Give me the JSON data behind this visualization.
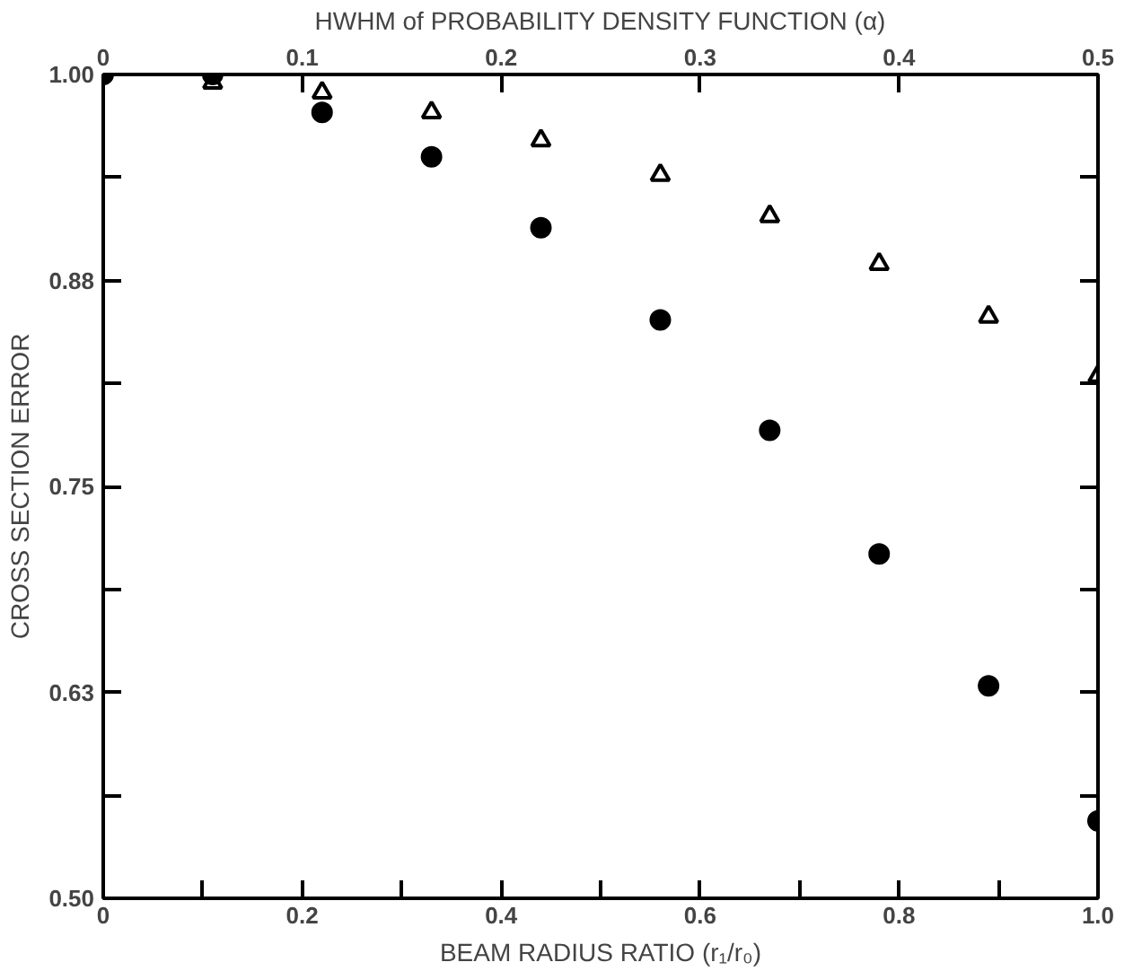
{
  "chart_data": {
    "type": "scatter",
    "xlabel": "BEAM RADIUS RATIO (r₁/r₀)",
    "ylabel": "CROSS SECTION ERROR",
    "x2label": "HWHM of PROBABILITY DENSITY FUNCTION (α)",
    "x": [
      0,
      0.11,
      0.22,
      0.33,
      0.44,
      0.56,
      0.67,
      0.78,
      0.89,
      1.0
    ],
    "series": [
      {
        "color": "#000000",
        "marker": "circle",
        "values": [
          1.0,
          1.0,
          0.977,
          0.95,
          0.907,
          0.851,
          0.784,
          0.709,
          0.629,
          0.547
        ]
      },
      {
        "color": "#000000",
        "marker": "triangle",
        "values": [
          null,
          0.995,
          0.989,
          0.977,
          0.96,
          0.939,
          0.914,
          0.885,
          0.853,
          0.817
        ]
      }
    ],
    "xlim": [
      0,
      1.0
    ],
    "xticks": [
      0,
      {
        "value": 0.1,
        "label": null
      },
      0.2,
      {
        "value": 0.3,
        "label": null
      },
      0.4,
      {
        "value": 0.5,
        "label": null
      },
      0.6,
      {
        "value": 0.7,
        "label": null
      },
      0.8,
      {
        "value": 0.9,
        "label": null
      },
      {
        "value": 1.0,
        "label": "1.0"
      }
    ],
    "x2lim": [
      0,
      0.5
    ],
    "x2ticks": [
      0,
      0.1,
      0.2,
      0.3,
      0.4,
      0.5
    ],
    "ylim": [
      0.5,
      1.0
    ],
    "yticks": [
      {
        "value": 0.5,
        "label": "0.50"
      },
      {
        "value": 0.5625,
        "label": null
      },
      {
        "value": 0.625,
        "label": "0.63"
      },
      {
        "value": 0.6875,
        "label": null
      },
      {
        "value": 0.75,
        "label": "0.75"
      },
      {
        "value": 0.8125,
        "label": null
      },
      {
        "value": 0.875,
        "label": "0.88"
      },
      {
        "value": 0.9375,
        "label": null
      },
      {
        "value": 1.0,
        "label": "1.00"
      }
    ],
    "grid": false
  }
}
